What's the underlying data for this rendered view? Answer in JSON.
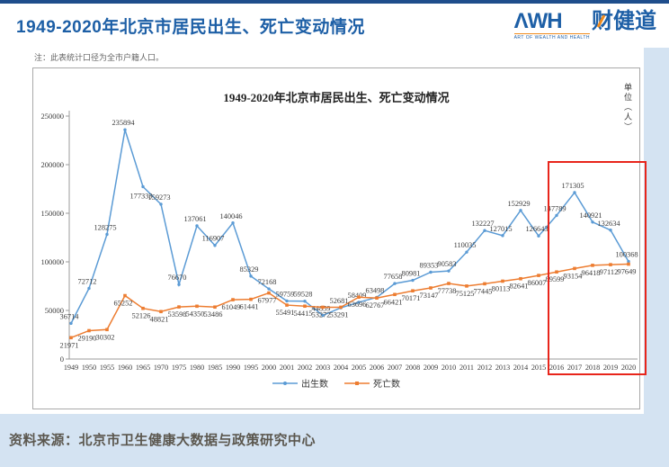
{
  "header": {
    "title": "1949-2020年北京市居民出生、死亡变动情况",
    "logo": {
      "awh": "ΛWH",
      "cn": "财健道",
      "tagline": "ART OF WEALTH AND HEALTH"
    }
  },
  "note": "注：此表统计口径为全市户籍人口。",
  "footer": {
    "source": "资料来源：北京市卫生健康大数据与政策研究中心"
  },
  "chart_data": {
    "type": "line",
    "title": "1949-2020年北京市居民出生、死亡变动情况",
    "unit_label": "单位（人）",
    "categories": [
      "1949",
      "1950",
      "1955",
      "1960",
      "1965",
      "1970",
      "1975",
      "1980",
      "1985",
      "1990",
      "1995",
      "2000",
      "2001",
      "2002",
      "2003",
      "2004",
      "2005",
      "2006",
      "2007",
      "2008",
      "2009",
      "2010",
      "2011",
      "2012",
      "2013",
      "2014",
      "2015",
      "2016",
      "2017",
      "2018",
      "2019",
      "2020"
    ],
    "series": [
      {
        "name": "出生数",
        "color": "#5b9bd5",
        "marker": "circle",
        "values": [
          36714,
          72712,
          128275,
          235894,
          177333,
          159273,
          76670,
          137061,
          116907,
          140046,
          85329,
          72168,
          59759,
          59528,
          44859,
          52681,
          58409,
          63498,
          77658,
          80981,
          89353,
          90583,
          110035,
          132227,
          127015,
          152929,
          126643,
          147789,
          171305,
          140921,
          132634,
          100368
        ]
      },
      {
        "name": "死亡数",
        "color": "#ed7d31",
        "marker": "square",
        "values": [
          21971,
          29190,
          30302,
          65252,
          52126,
          48821,
          53598,
          54350,
          53486,
          61049,
          61441,
          67977,
          55491,
          54415,
          53272,
          53291,
          63696,
          62767,
          66421,
          70171,
          73147,
          77738,
          75125,
          77445,
          80113,
          82641,
          86007,
          89599,
          93154,
          96418,
          97112,
          97649
        ]
      }
    ],
    "ylim": [
      0,
      250000
    ],
    "yticks": [
      0,
      50000,
      100000,
      150000,
      200000,
      250000
    ],
    "grid": false,
    "legend_position": "bottom",
    "data_labels": true,
    "highlight_box_years": [
      "2016",
      "2020"
    ],
    "highlight_color": "#e8251b"
  }
}
